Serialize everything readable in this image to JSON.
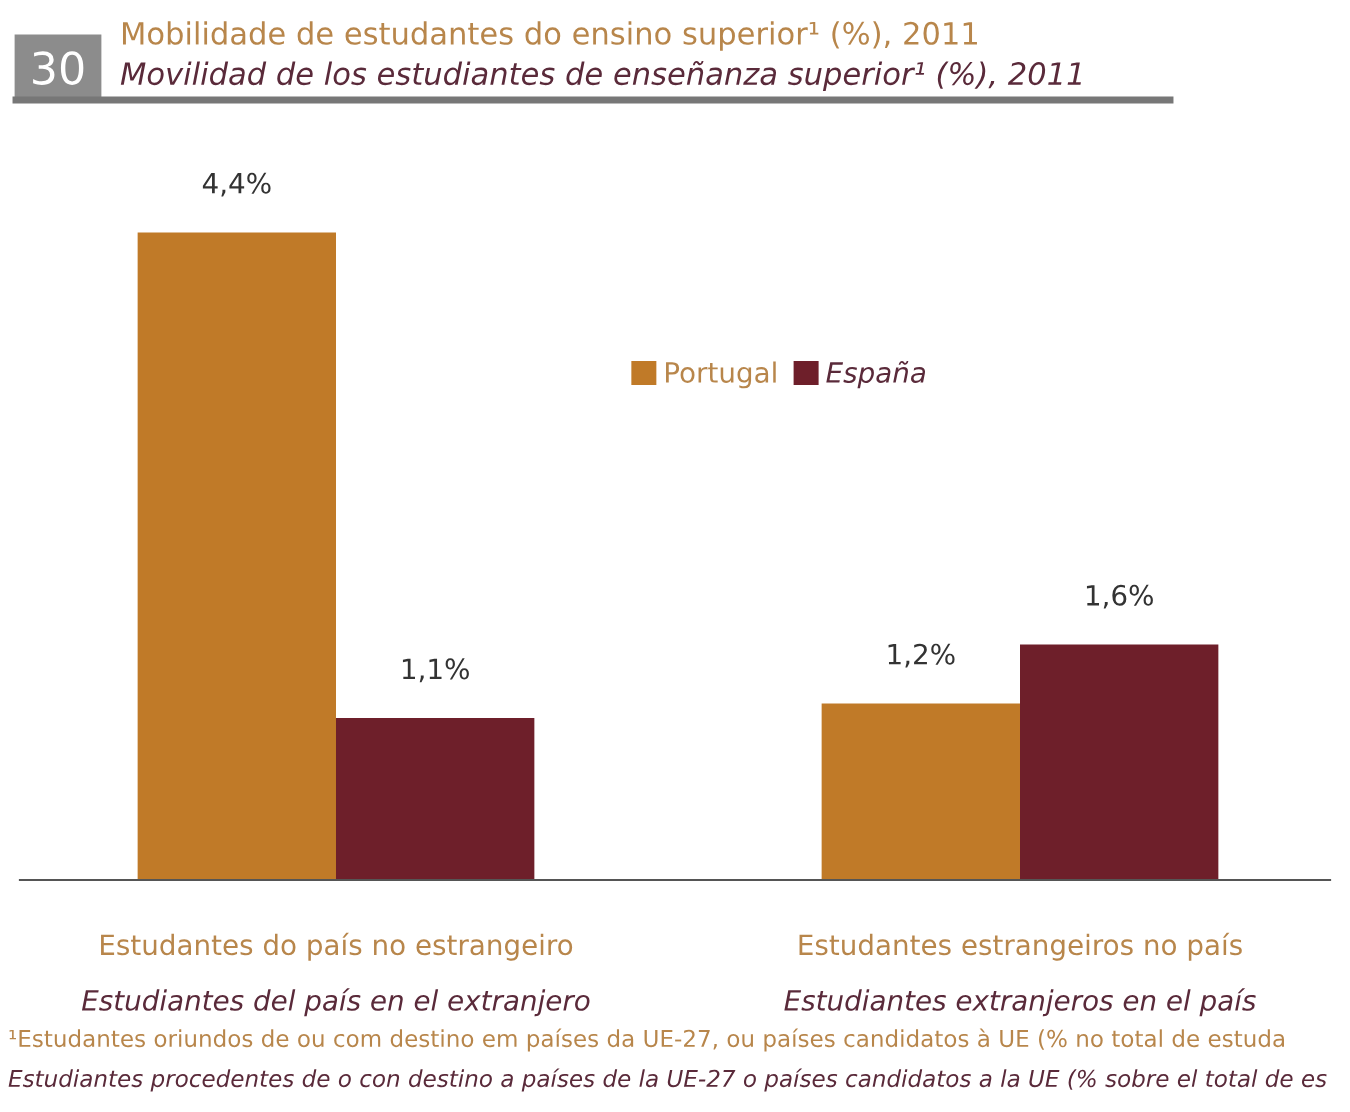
{
  "chart_data": {
    "type": "bar",
    "title": "Mobilidade de estudantes do ensino superior¹ (%), 2011",
    "subtitle": "Movilidad de los estudiantes de enseñanza superior¹ (%), 2011",
    "categories": [
      "Estudantes do país no estrangeiro\nEstudiantes del país en el extranjero",
      "Estudantes estrangeiros no país\nEstudiantes extranjeros en el país"
    ],
    "series": [
      {
        "name": "Portugal",
        "color": "#c07a28",
        "values": [
          4.4,
          1.2
        ],
        "value_labels": [
          "4,4%",
          "1,2%"
        ]
      },
      {
        "name": "España",
        "color": "#6e1f2a",
        "values": [
          1.1,
          1.6
        ],
        "value_labels": [
          "1,1%",
          "1,6%"
        ]
      }
    ],
    "annotations": [
      "30",
      "¹Estudantes oriundos de ou com destino em países da UE-27, ou países candidatos à UE (% no total de estuda",
      "Estudiantes procedentes de o con destino a países de la UE-27 o países candidatos a la UE (% sobre el total de es"
    ],
    "legend": "top"
  }
}
